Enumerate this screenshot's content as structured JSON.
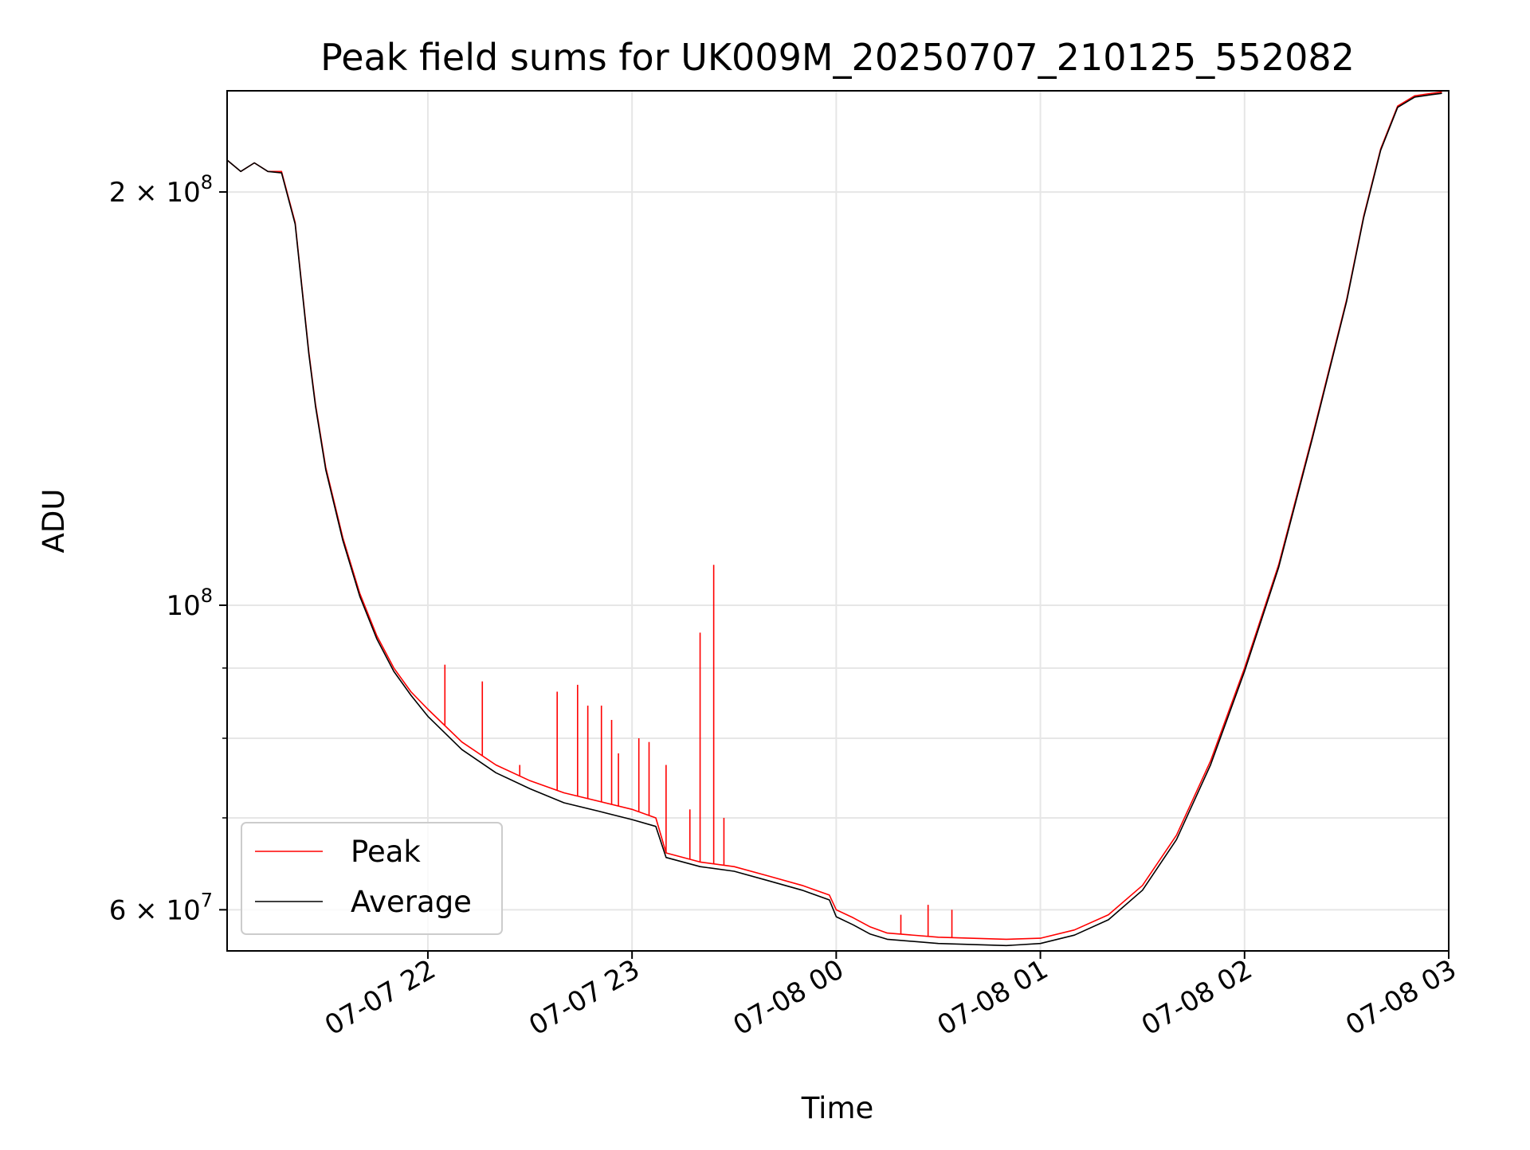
{
  "colors": {
    "peak": "#ff0000",
    "average": "#000000",
    "grid": "#e6e6e6",
    "axes": "#000000",
    "background": "#ffffff"
  },
  "chart_data": {
    "type": "line",
    "title": "Peak field sums for UK009M_20250707_210125_552082",
    "xlabel": "Time",
    "ylabel": "ADU",
    "yscale": "log",
    "grid": true,
    "legend_position": "lower-left",
    "xlim": [
      "2025-07-07 21:01",
      "2025-07-08 03:00"
    ],
    "ylim": [
      56000000,
      237000000
    ],
    "x_ticks": [
      {
        "value": "2025-07-07 22:00",
        "label": "07-07 22"
      },
      {
        "value": "2025-07-07 23:00",
        "label": "07-07 23"
      },
      {
        "value": "2025-07-08 00:00",
        "label": "07-08 00"
      },
      {
        "value": "2025-07-08 01:00",
        "label": "07-08 01"
      },
      {
        "value": "2025-07-08 02:00",
        "label": "07-08 02"
      },
      {
        "value": "2025-07-08 03:00",
        "label": "07-08 03"
      }
    ],
    "y_major_ticks": [
      {
        "value": 60000000,
        "base": "6 × 10",
        "exp": "7"
      },
      {
        "value": 100000000,
        "base": "10",
        "exp": "8"
      },
      {
        "value": 200000000,
        "base": "2 × 10",
        "exp": "8"
      }
    ],
    "y_minor_ticks": [
      70000000,
      80000000,
      90000000
    ],
    "series": [
      {
        "name": "Peak",
        "color": "#ff0000",
        "x": [
          "2025-07-07 21:01",
          "2025-07-07 21:05",
          "2025-07-07 21:09",
          "2025-07-07 21:13",
          "2025-07-07 21:17",
          "2025-07-07 21:21",
          "2025-07-07 21:25",
          "2025-07-07 21:27",
          "2025-07-07 21:30",
          "2025-07-07 21:35",
          "2025-07-07 21:40",
          "2025-07-07 21:45",
          "2025-07-07 21:50",
          "2025-07-07 21:55",
          "2025-07-07 22:00",
          "2025-07-07 22:10",
          "2025-07-07 22:20",
          "2025-07-07 22:30",
          "2025-07-07 22:40",
          "2025-07-07 22:50",
          "2025-07-07 23:00",
          "2025-07-07 23:07",
          "2025-07-07 23:10",
          "2025-07-07 23:20",
          "2025-07-07 23:30",
          "2025-07-07 23:40",
          "2025-07-07 23:50",
          "2025-07-07 23:58",
          "2025-07-08 00:00",
          "2025-07-08 00:05",
          "2025-07-08 00:10",
          "2025-07-08 00:15",
          "2025-07-08 00:30",
          "2025-07-08 00:50",
          "2025-07-08 01:00",
          "2025-07-08 01:10",
          "2025-07-08 01:20",
          "2025-07-08 01:30",
          "2025-07-08 01:40",
          "2025-07-08 01:50",
          "2025-07-08 02:00",
          "2025-07-08 02:10",
          "2025-07-08 02:20",
          "2025-07-08 02:30",
          "2025-07-08 02:35",
          "2025-07-08 02:40",
          "2025-07-08 02:45",
          "2025-07-08 02:50",
          "2025-07-08 02:55",
          "2025-07-08 02:58"
        ],
        "values": [
          211000000,
          207000000,
          210000000,
          207000000,
          207000000,
          190000000,
          153000000,
          140000000,
          126000000,
          112000000,
          102000000,
          95000000,
          90000000,
          86500000,
          84000000,
          79500000,
          76500000,
          74500000,
          73000000,
          72000000,
          71000000,
          70000000,
          66000000,
          65000000,
          64500000,
          63500000,
          62500000,
          61500000,
          60000000,
          59200000,
          58300000,
          57700000,
          57300000,
          57100000,
          57200000,
          58000000,
          59500000,
          62500000,
          68000000,
          77000000,
          90000000,
          107000000,
          133000000,
          167000000,
          192000000,
          215000000,
          231000000,
          235000000,
          236000000,
          236500000
        ],
        "spikes": [
          {
            "x": "2025-07-07 22:05",
            "value": 90500000
          },
          {
            "x": "2025-07-07 22:16",
            "value": 88000000
          },
          {
            "x": "2025-07-07 22:27",
            "value": 76500000
          },
          {
            "x": "2025-07-07 22:38",
            "value": 86500000
          },
          {
            "x": "2025-07-07 22:44",
            "value": 87500000
          },
          {
            "x": "2025-07-07 22:47",
            "value": 84500000
          },
          {
            "x": "2025-07-07 22:51",
            "value": 84500000
          },
          {
            "x": "2025-07-07 22:54",
            "value": 82500000
          },
          {
            "x": "2025-07-07 22:56",
            "value": 78000000
          },
          {
            "x": "2025-07-07 23:02",
            "value": 80000000
          },
          {
            "x": "2025-07-07 23:05",
            "value": 79500000
          },
          {
            "x": "2025-07-07 23:10",
            "value": 76500000
          },
          {
            "x": "2025-07-07 23:17",
            "value": 71000000
          },
          {
            "x": "2025-07-07 23:20",
            "value": 95500000
          },
          {
            "x": "2025-07-07 23:24",
            "value": 107000000
          },
          {
            "x": "2025-07-07 23:27",
            "value": 70000000
          },
          {
            "x": "2025-07-08 00:19",
            "value": 59500000
          },
          {
            "x": "2025-07-08 00:27",
            "value": 60500000
          },
          {
            "x": "2025-07-08 00:34",
            "value": 60000000
          }
        ]
      },
      {
        "name": "Average",
        "color": "#000000",
        "x": [
          "2025-07-07 21:01",
          "2025-07-07 21:05",
          "2025-07-07 21:09",
          "2025-07-07 21:13",
          "2025-07-07 21:17",
          "2025-07-07 21:21",
          "2025-07-07 21:25",
          "2025-07-07 21:27",
          "2025-07-07 21:30",
          "2025-07-07 21:35",
          "2025-07-07 21:40",
          "2025-07-07 21:45",
          "2025-07-07 21:50",
          "2025-07-07 21:55",
          "2025-07-07 22:00",
          "2025-07-07 22:10",
          "2025-07-07 22:20",
          "2025-07-07 22:30",
          "2025-07-07 22:40",
          "2025-07-07 22:50",
          "2025-07-07 23:00",
          "2025-07-07 23:07",
          "2025-07-07 23:10",
          "2025-07-07 23:20",
          "2025-07-07 23:30",
          "2025-07-07 23:40",
          "2025-07-07 23:50",
          "2025-07-07 23:58",
          "2025-07-08 00:00",
          "2025-07-08 00:05",
          "2025-07-08 00:10",
          "2025-07-08 00:15",
          "2025-07-08 00:30",
          "2025-07-08 00:50",
          "2025-07-08 01:00",
          "2025-07-08 01:10",
          "2025-07-08 01:20",
          "2025-07-08 01:30",
          "2025-07-08 01:40",
          "2025-07-08 01:50",
          "2025-07-08 02:00",
          "2025-07-08 02:10",
          "2025-07-08 02:20",
          "2025-07-08 02:30",
          "2025-07-08 02:35",
          "2025-07-08 02:40",
          "2025-07-08 02:45",
          "2025-07-08 02:50",
          "2025-07-08 02:55",
          "2025-07-08 02:58"
        ],
        "values": [
          211000000,
          207000000,
          210000000,
          207000000,
          206500000,
          189500000,
          152500000,
          139500000,
          125500000,
          111500000,
          101500000,
          94500000,
          89500000,
          86000000,
          83000000,
          78500000,
          75500000,
          73500000,
          71800000,
          70800000,
          69800000,
          69000000,
          65500000,
          64500000,
          64000000,
          63000000,
          62000000,
          61000000,
          59300000,
          58500000,
          57600000,
          57100000,
          56700000,
          56500000,
          56700000,
          57500000,
          59000000,
          62000000,
          67500000,
          76500000,
          89500000,
          106500000,
          132500000,
          166500000,
          191500000,
          214500000,
          230500000,
          234500000,
          235500000,
          236000000
        ]
      }
    ]
  }
}
